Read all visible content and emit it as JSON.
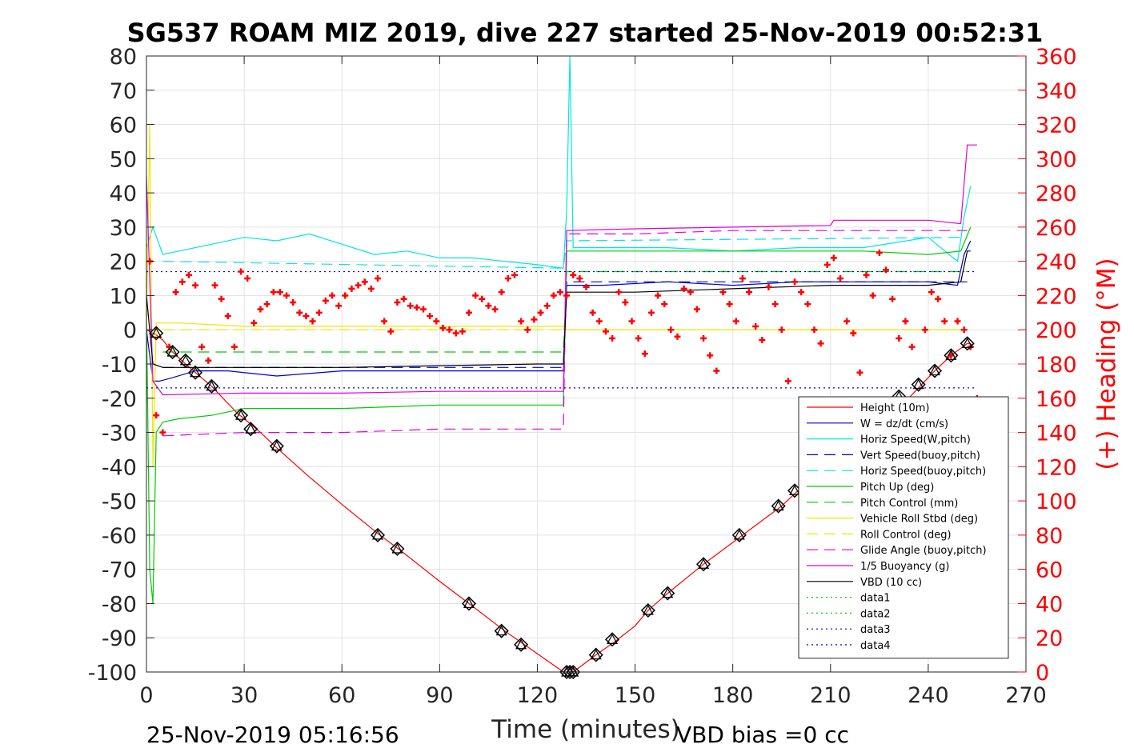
{
  "title": "SG537 ROAM MIZ 2019, dive 227 started 25-Nov-2019 00:52:31",
  "footer_left": "25-Nov-2019 05:16:56",
  "footer_right": "VBD bias =0 cc",
  "chart_data": {
    "type": "line",
    "title": "SG537 ROAM MIZ 2019, dive 227 started 25-Nov-2019 00:52:31",
    "xlabel": "Time (minutes)",
    "ylabel": "",
    "ylabel_right": "(+) Heading (°M)",
    "xlim": [
      0,
      270
    ],
    "ylim": [
      -100,
      80
    ],
    "ylim_right": [
      0,
      360
    ],
    "xticks": [
      0,
      30,
      60,
      90,
      120,
      150,
      180,
      210,
      240,
      270
    ],
    "yticks": [
      -100,
      -90,
      -80,
      -70,
      -60,
      -50,
      -40,
      -30,
      -20,
      -10,
      0,
      10,
      20,
      30,
      40,
      50,
      60,
      70,
      80
    ],
    "yticks_right": [
      0,
      20,
      40,
      60,
      80,
      100,
      120,
      140,
      160,
      180,
      200,
      220,
      240,
      260,
      280,
      300,
      320,
      340,
      360
    ],
    "grid": true,
    "legend_position": "bottom-right",
    "colors": {
      "height": "#ff0000",
      "w": "#0000cc",
      "horiz": "#00e5e5",
      "pitch": "#00cc00",
      "roll": "#f2e600",
      "glide": "#e000e0",
      "vbd": "#000000",
      "data_green": "#00cc00",
      "data_blue": "#0000cc",
      "heading": "#ff0000"
    },
    "series": [
      {
        "name": "Height (10m)",
        "color": "#ff0000",
        "style": "solid",
        "x": [
          0,
          1,
          2,
          3,
          5,
          8,
          12,
          15,
          20,
          28,
          30,
          35,
          40,
          50,
          60,
          71,
          78,
          90,
          99,
          110,
          116,
          128,
          130,
          131,
          138,
          144,
          150,
          154,
          160,
          171,
          183,
          195,
          200,
          210,
          220,
          232,
          237,
          242,
          247,
          252,
          253
        ],
        "y": [
          0,
          -0.5,
          -1,
          -1.5,
          -3,
          -6.5,
          -10,
          -12.5,
          -16.5,
          -24.5,
          -26,
          -30,
          -34.5,
          -43,
          -51,
          -59.5,
          -64.5,
          -73.5,
          -80,
          -88,
          -92,
          -100,
          -100,
          -100,
          -95,
          -91,
          -86.5,
          -82,
          -77,
          -68.5,
          -60,
          -51.5,
          -47,
          -39,
          -31.5,
          -22,
          -17,
          -12,
          -7.5,
          -4,
          -4
        ]
      },
      {
        "name": "W = dz/dt (cm/s)",
        "color": "#0000cc",
        "style": "solid",
        "x": [
          0,
          2,
          4,
          8,
          15,
          25,
          40,
          60,
          80,
          100,
          120,
          128,
          129,
          140,
          160,
          180,
          200,
          220,
          240,
          249,
          251,
          253
        ],
        "y": [
          0,
          -15,
          -15,
          -14,
          -12,
          -12,
          -13.5,
          -12,
          -12,
          -12,
          -12,
          -12,
          13,
          13,
          14,
          13,
          14,
          14,
          14,
          13,
          22,
          26
        ]
      },
      {
        "name": "Horiz Speed(W,pitch)",
        "color": "#00e5e5",
        "style": "solid",
        "x": [
          0,
          2,
          5,
          10,
          20,
          30,
          40,
          50,
          60,
          70,
          80,
          90,
          100,
          110,
          120,
          128,
          129,
          130,
          131,
          140,
          160,
          180,
          200,
          220,
          240,
          249,
          251,
          253
        ],
        "y": [
          24,
          30,
          22,
          23,
          25,
          27,
          26,
          28,
          25,
          22,
          23,
          21,
          21,
          20,
          19,
          18,
          35,
          80,
          24,
          24,
          24,
          23,
          24,
          24,
          27,
          20,
          33,
          42
        ]
      },
      {
        "name": "Vert Speed(buoy,pitch)",
        "color": "#0000cc",
        "style": "dashed",
        "x": [
          5,
          128,
          129,
          252
        ],
        "y": [
          -11,
          -11,
          14,
          14
        ]
      },
      {
        "name": "Horiz Speed(buoy,pitch)",
        "color": "#00e5e5",
        "style": "dashed",
        "x": [
          5,
          128,
          129,
          252
        ],
        "y": [
          20,
          18,
          26,
          27
        ]
      },
      {
        "name": "Pitch Up (deg)",
        "color": "#00cc00",
        "style": "solid",
        "x": [
          0,
          1,
          2,
          3,
          5,
          10,
          20,
          30,
          60,
          90,
          120,
          128,
          129,
          140,
          160,
          180,
          200,
          220,
          240,
          250,
          253
        ],
        "y": [
          5,
          -70,
          -80,
          -30,
          -27,
          -26,
          -25,
          -23,
          -23,
          -22,
          -22,
          -22,
          23,
          23,
          23,
          23,
          23,
          23,
          22,
          23,
          30
        ]
      },
      {
        "name": "Pitch Control (mm)",
        "color": "#00cc00",
        "style": "dashed",
        "x": [
          5,
          128,
          129,
          252
        ],
        "y": [
          -6.5,
          -6.5,
          17,
          17
        ]
      },
      {
        "name": "Vehicle Roll Stbd (deg)",
        "color": "#f2e600",
        "style": "solid",
        "x": [
          0,
          1,
          2,
          3,
          5,
          10,
          30,
          60,
          90,
          120,
          128,
          129,
          150,
          180,
          210,
          240,
          252
        ],
        "y": [
          0,
          60,
          -40,
          2,
          2,
          2,
          1,
          1,
          1,
          1,
          1,
          0,
          0,
          0,
          0,
          0,
          0
        ]
      },
      {
        "name": "Roll Control (deg)",
        "color": "#f2e600",
        "style": "dashed",
        "x": [
          5,
          128,
          129,
          252
        ],
        "y": [
          0,
          0,
          0,
          0
        ]
      },
      {
        "name": "Glide Angle (buoy,pitch)",
        "color": "#e000e0",
        "style": "dashed",
        "x": [
          5,
          30,
          60,
          90,
          120,
          128,
          129,
          150,
          180,
          210,
          240,
          252
        ],
        "y": [
          -31,
          -30,
          -30,
          -29,
          -29,
          -29,
          28,
          28,
          29,
          29,
          29,
          29
        ]
      },
      {
        "name": "1/5 Buoyancy (g)",
        "color": "#e000e0",
        "style": "solid",
        "x": [
          0,
          2,
          5,
          30,
          60,
          90,
          128,
          129,
          150,
          180,
          210,
          211,
          240,
          250,
          252,
          255
        ],
        "y": [
          45,
          -15,
          -19,
          -18.5,
          -18.5,
          -18,
          -18,
          29,
          29.5,
          30,
          30.5,
          32,
          32,
          31,
          54,
          54
        ]
      },
      {
        "name": "VBD (10 cc)",
        "color": "#000000",
        "style": "solid",
        "x": [
          0,
          2,
          5,
          60,
          120,
          128,
          129,
          150,
          180,
          210,
          240,
          250,
          252,
          253
        ],
        "y": [
          10,
          -10,
          -11,
          -11,
          -10,
          -10,
          11,
          11,
          12,
          13,
          13,
          14,
          23,
          23
        ]
      },
      {
        "name": "data1",
        "color": "#00cc00",
        "style": "dotted",
        "x": [],
        "y": []
      },
      {
        "name": "data2",
        "color": "#00cc00",
        "style": "dotted",
        "x": [],
        "y": []
      },
      {
        "name": "data3",
        "color": "#0000cc",
        "style": "dotted",
        "x": [
          0,
          255
        ],
        "y": [
          -17,
          -17
        ]
      },
      {
        "name": "data4",
        "color": "#0000cc",
        "style": "dotted",
        "x": [
          0,
          255
        ],
        "y": [
          17,
          17
        ]
      }
    ],
    "heading_points": {
      "axis": "right",
      "marker": "+",
      "color": "#ff0000",
      "x": [
        1,
        3,
        5,
        7,
        9,
        11,
        13,
        15,
        17,
        19,
        21,
        23,
        25,
        27,
        29,
        31,
        33,
        35,
        37,
        39,
        41,
        43,
        45,
        47,
        49,
        51,
        53,
        55,
        57,
        59,
        61,
        63,
        65,
        67,
        69,
        71,
        73,
        75,
        77,
        79,
        81,
        83,
        85,
        87,
        89,
        91,
        93,
        95,
        97,
        99,
        101,
        103,
        105,
        107,
        109,
        111,
        113,
        115,
        117,
        119,
        121,
        123,
        125,
        127,
        129,
        131,
        133,
        135,
        137,
        139,
        141,
        143,
        145,
        147,
        149,
        151,
        153,
        155,
        157,
        159,
        161,
        163,
        165,
        167,
        169,
        171,
        173,
        175,
        177,
        179,
        181,
        183,
        185,
        187,
        189,
        191,
        193,
        195,
        197,
        199,
        201,
        203,
        205,
        207,
        209,
        211,
        213,
        215,
        217,
        219,
        221,
        223,
        225,
        227,
        229,
        231,
        233,
        235,
        237,
        239,
        241,
        243,
        245,
        247,
        249,
        251,
        253,
        255
      ],
      "y": [
        240,
        150,
        140,
        190,
        222,
        228,
        232,
        226,
        190,
        182,
        226,
        218,
        208,
        190,
        234,
        230,
        204,
        212,
        215,
        222,
        222,
        220,
        216,
        210,
        208,
        205,
        210,
        217,
        220,
        214,
        220,
        224,
        226,
        228,
        224,
        230,
        205,
        199,
        216,
        218,
        214,
        213,
        212,
        208,
        205,
        201,
        200,
        198,
        199,
        210,
        220,
        218,
        214,
        212,
        222,
        230,
        232,
        205,
        200,
        206,
        210,
        214,
        220,
        222,
        220,
        232,
        230,
        225,
        210,
        205,
        199,
        195,
        222,
        216,
        205,
        195,
        186,
        210,
        220,
        215,
        200,
        196,
        224,
        222,
        212,
        195,
        185,
        176,
        222,
        215,
        205,
        230,
        222,
        202,
        194,
        225,
        215,
        200,
        170,
        228,
        222,
        215,
        200,
        192,
        238,
        242,
        230,
        205,
        198,
        175,
        232,
        220,
        245,
        235,
        218,
        195,
        205,
        190,
        150,
        200,
        222,
        218,
        205,
        185,
        205,
        200,
        190,
        160
      ]
    },
    "markers": {
      "color": "#000000",
      "shape": "diamond-triangle",
      "x": [
        3,
        8,
        12,
        15,
        20,
        29,
        32,
        40,
        71,
        77,
        99,
        109,
        115,
        129,
        130,
        131,
        138,
        143,
        154,
        160,
        171,
        182,
        194,
        199,
        231,
        237,
        242,
        247,
        252
      ],
      "y": [
        -1,
        -6.5,
        -9,
        -12.5,
        -16.5,
        -25,
        -29,
        -34,
        -60,
        -64,
        -80,
        -88,
        -92,
        -100,
        -100,
        -100,
        -95,
        -90.5,
        -82,
        -77,
        -68.5,
        -60,
        -51.5,
        -47,
        -19.5,
        -16,
        -12,
        -7.5,
        -4
      ]
    }
  }
}
